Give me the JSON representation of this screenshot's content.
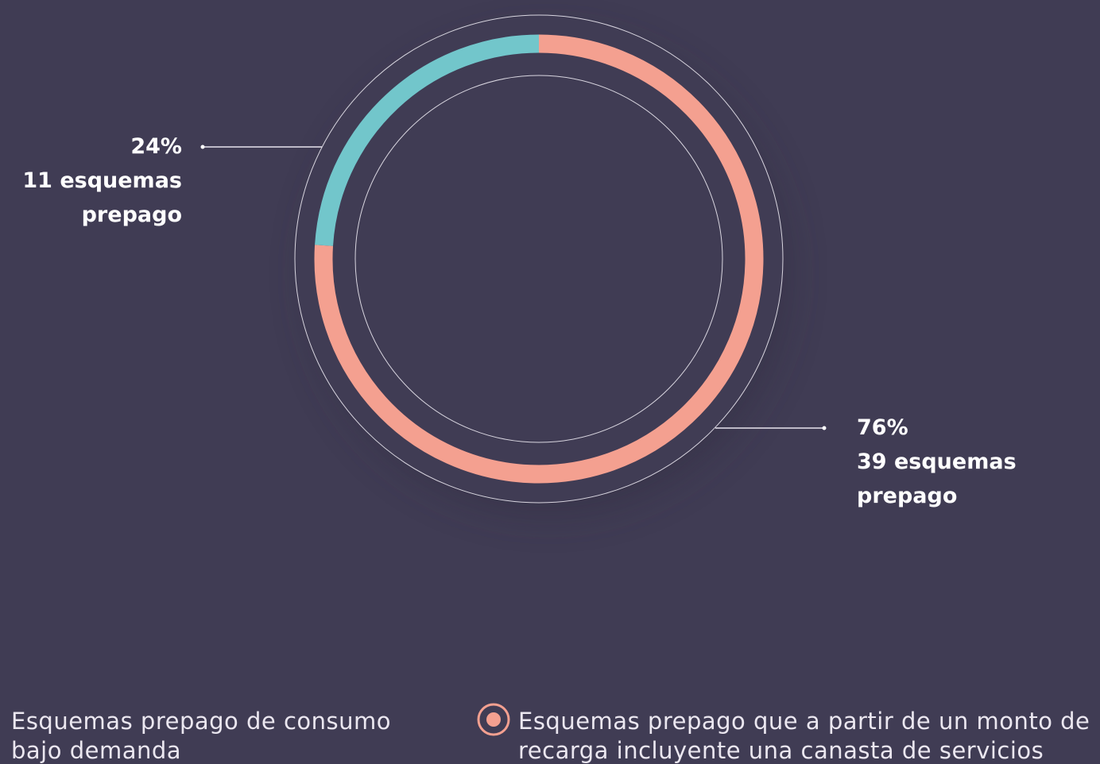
{
  "chart_data": {
    "type": "donut",
    "categories": [
      "Esquemas prepago de consumo bajo demanda",
      "Esquemas prepago que a partir de un monto de recarga incluyente una canasta de servicios"
    ],
    "values": [
      24,
      76
    ],
    "value_labels": [
      "24%",
      "76%"
    ],
    "detail_labels": [
      "11 esquemas prepago",
      "39 esquemas prepago"
    ],
    "colors": [
      "#72c6cb",
      "#f4a090"
    ]
  }
}
